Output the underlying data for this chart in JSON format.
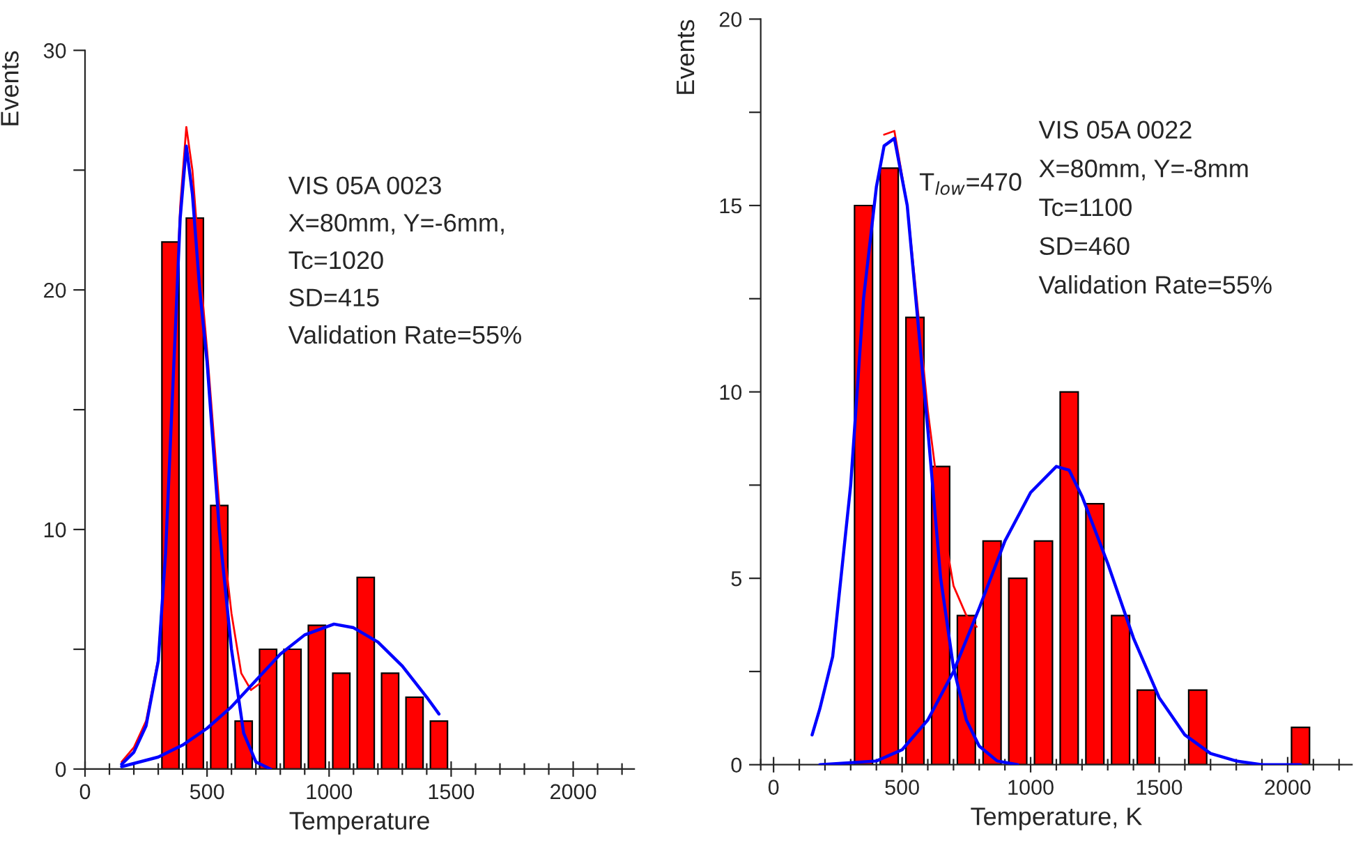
{
  "chart_data": [
    {
      "type": "bar",
      "xlabel": "Temperature",
      "ylabel": "Events",
      "xlim": [
        0,
        2250
      ],
      "ylim": [
        0,
        30
      ],
      "xticks": [
        0,
        {
          "value": 100,
          "label": null
        },
        {
          "value": 200,
          "label": null
        },
        {
          "value": 300,
          "label": null
        },
        {
          "value": 400,
          "label": null
        },
        500,
        {
          "value": 600,
          "label": null
        },
        {
          "value": 700,
          "label": null
        },
        {
          "value": 800,
          "label": null
        },
        {
          "value": 900,
          "label": null
        },
        1000,
        {
          "value": 1100,
          "label": null
        },
        {
          "value": 1200,
          "label": null
        },
        {
          "value": 1300,
          "label": null
        },
        {
          "value": 1400,
          "label": null
        },
        1500,
        {
          "value": 1600,
          "label": null
        },
        {
          "value": 1700,
          "label": null
        },
        {
          "value": 1800,
          "label": null
        },
        {
          "value": 1900,
          "label": null
        },
        2000,
        {
          "value": 2100,
          "label": null
        },
        {
          "value": 2200,
          "label": null
        }
      ],
      "yticks": [
        0,
        {
          "value": 5,
          "label": null
        },
        10,
        {
          "value": 15,
          "label": null
        },
        20,
        {
          "value": 25,
          "label": null
        },
        30
      ],
      "grid": false,
      "legend": false,
      "annotations": [
        "VIS 05A 0023",
        "X=80mm, Y=-6mm,",
        "Tc=1020",
        "SD=415",
        "Validation Rate=55%"
      ],
      "series": [
        {
          "color": "#ff0000",
          "x": [
            350,
            450,
            550,
            650,
            750,
            850,
            950,
            1050,
            1150,
            1250,
            1350,
            1450
          ],
          "values": [
            22,
            23,
            11,
            2,
            5,
            5,
            6,
            4,
            8,
            4,
            3,
            2
          ]
        },
        {
          "type": "line",
          "color": "#ff0000",
          "x": [
            150,
            200,
            250,
            300,
            330,
            360,
            390,
            415,
            440,
            470,
            500,
            550,
            600,
            640,
            680,
            720,
            760
          ],
          "values": [
            0.3,
            0.9,
            2.0,
            4.6,
            9.2,
            16.2,
            23.5,
            26.8,
            25,
            21,
            17.5,
            11,
            6.5,
            4,
            3.3,
            3.6,
            4.2
          ]
        },
        {
          "type": "line",
          "color": "#0000ff",
          "x": [
            150,
            200,
            250,
            300,
            330,
            360,
            390,
            415,
            440,
            470,
            500,
            550,
            600,
            650,
            700,
            760
          ],
          "values": [
            0.2,
            0.7,
            1.8,
            4.5,
            9,
            16,
            23,
            26,
            24,
            20,
            17,
            10,
            5,
            1.5,
            0.3,
            0
          ]
        },
        {
          "type": "line",
          "color": "#0000ff",
          "x": [
            150,
            300,
            400,
            500,
            600,
            700,
            800,
            900,
            1020,
            1100,
            1200,
            1300,
            1400,
            1450
          ],
          "values": [
            0.1,
            0.5,
            1,
            1.7,
            2.6,
            3.7,
            4.8,
            5.6,
            6.05,
            5.9,
            5.3,
            4.3,
            3.0,
            2.3
          ]
        }
      ]
    },
    {
      "type": "bar",
      "xlabel": "Temperature, K",
      "ylabel": "Events",
      "xlim": [
        -50,
        2250
      ],
      "ylim": [
        0,
        20
      ],
      "xticks": [
        {
          "value": -50,
          "label": null
        },
        0,
        {
          "value": 100,
          "label": null
        },
        {
          "value": 200,
          "label": null
        },
        {
          "value": 300,
          "label": null
        },
        {
          "value": 400,
          "label": null
        },
        500,
        {
          "value": 600,
          "label": null
        },
        {
          "value": 700,
          "label": null
        },
        {
          "value": 800,
          "label": null
        },
        {
          "value": 900,
          "label": null
        },
        1000,
        {
          "value": 1100,
          "label": null
        },
        {
          "value": 1200,
          "label": null
        },
        {
          "value": 1300,
          "label": null
        },
        {
          "value": 1400,
          "label": null
        },
        1500,
        {
          "value": 1600,
          "label": null
        },
        {
          "value": 1700,
          "label": null
        },
        {
          "value": 1800,
          "label": null
        },
        {
          "value": 1900,
          "label": null
        },
        2000,
        {
          "value": 2100,
          "label": null
        },
        {
          "value": 2200,
          "label": null
        }
      ],
      "yticks": [
        0,
        {
          "value": 2.5,
          "label": null
        },
        5,
        {
          "value": 7.5,
          "label": null
        },
        10,
        {
          "value": 12.5,
          "label": null
        },
        15,
        {
          "value": 17.5,
          "label": null
        },
        20
      ],
      "grid": false,
      "legend": false,
      "annotations": [
        "T$_{low}$=470",
        "VIS 05A 0022",
        "X=80mm, Y=-8mm",
        "Tc=1100",
        "SD=460",
        "Validation Rate=55%"
      ],
      "series": [
        {
          "color": "#ff0000",
          "x": [
            350,
            450,
            550,
            650,
            750,
            850,
            950,
            1050,
            1150,
            1250,
            1350,
            1450,
            1650,
            2050
          ],
          "values": [
            15,
            16,
            12,
            8,
            4,
            6,
            5,
            6,
            10,
            7,
            4,
            2,
            2,
            1
          ]
        },
        {
          "type": "line",
          "color": "#ff0000",
          "x": [
            430,
            470,
            520,
            560,
            600,
            650,
            700,
            750,
            790
          ],
          "values": [
            16.9,
            17,
            15,
            12.3,
            9.5,
            6.8,
            4.8,
            4.0,
            3.7
          ]
        },
        {
          "type": "line",
          "color": "#0000ff",
          "x": [
            150,
            180,
            230,
            300,
            350,
            400,
            430,
            470,
            520,
            560,
            600,
            650,
            700,
            750,
            800,
            870,
            950
          ],
          "values": [
            0.8,
            1.5,
            2.9,
            7.5,
            12.5,
            15.5,
            16.6,
            16.8,
            15,
            12,
            9,
            5,
            2.6,
            1.2,
            0.5,
            0.1,
            0
          ]
        },
        {
          "type": "line",
          "color": "#0000ff",
          "x": [
            180,
            400,
            500,
            600,
            700,
            800,
            900,
            1000,
            1100,
            1150,
            1200,
            1300,
            1400,
            1500,
            1600,
            1700,
            1800,
            1900,
            2050
          ],
          "values": [
            0,
            0.1,
            0.4,
            1.2,
            2.5,
            4.2,
            6,
            7.3,
            8,
            7.9,
            7.2,
            5.4,
            3.4,
            1.8,
            0.8,
            0.3,
            0.1,
            0,
            0
          ]
        }
      ]
    }
  ]
}
